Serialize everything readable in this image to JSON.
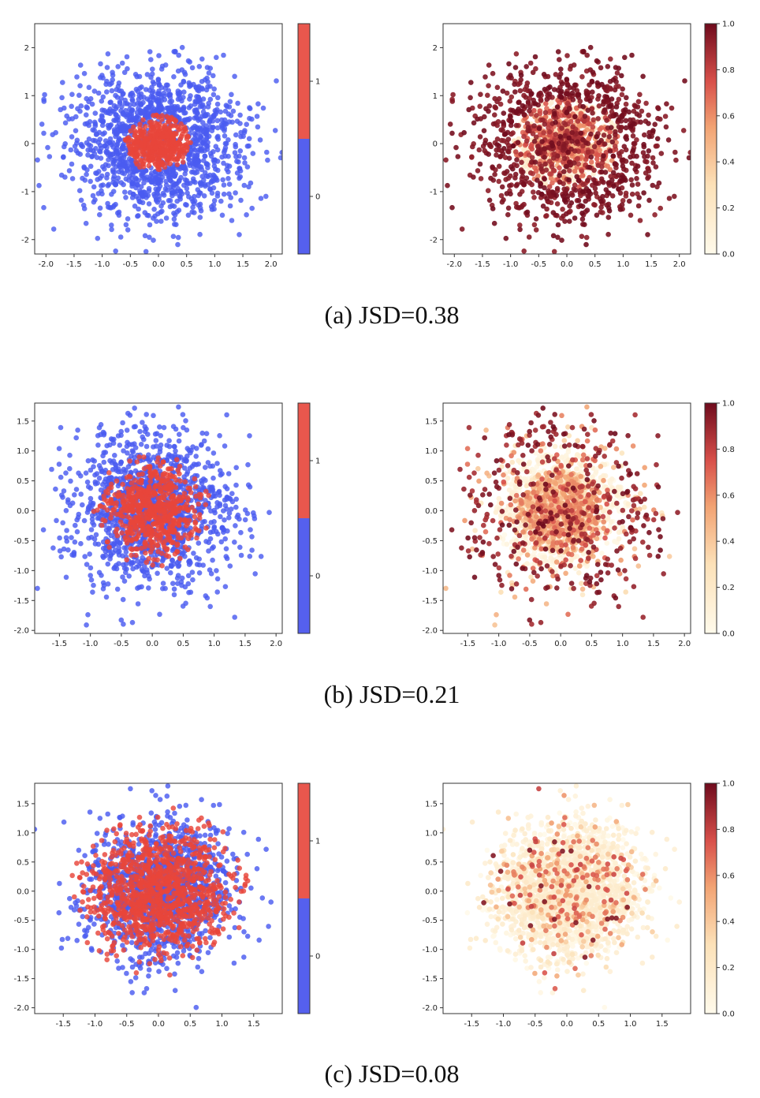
{
  "colors": {
    "blue": "#4a5cf0",
    "red": "#e8453a",
    "cmap_low": "#fffaeb",
    "cmap_mid": "#f2c089",
    "cmap_high": "#6f0b1d"
  },
  "chart_data": [
    {
      "type": "scatter",
      "id": "a",
      "caption": "(a) JSD=0.38",
      "description": "Outer blue ring (class 0, radius ~0.6-2.1) with inner red core (class 1, radius < ~0.6); right panel colored by per-point weight: core ~0.2-0.9 mixed, ring ~1.0",
      "outer_std": 0.75,
      "inner_std": 0.3,
      "inner_clip": 0.6,
      "left": {
        "xlim": [
          -2.2,
          2.2
        ],
        "ylim": [
          -2.3,
          2.5
        ],
        "xticks": [
          "-2.0",
          "-1.5",
          "-1.0",
          "-0.5",
          "0.0",
          "0.5",
          "1.0",
          "1.5",
          "2.0"
        ],
        "xtick_values": [
          -2.0,
          -1.5,
          -1.0,
          -0.5,
          0.0,
          0.5,
          1.0,
          1.5,
          2.0
        ],
        "yticks": [
          "-2",
          "-1",
          "0",
          "1",
          "2"
        ],
        "ytick_values": [
          -2,
          -1,
          0,
          1,
          2
        ],
        "colorbar_ticks": [
          "0",
          "1"
        ]
      },
      "right": {
        "xlim": [
          -2.2,
          2.2
        ],
        "ylim": [
          -2.3,
          2.5
        ],
        "xticks": [
          "-2.0",
          "-1.5",
          "-1.0",
          "-0.5",
          "0.0",
          "0.5",
          "1.0",
          "1.5",
          "2.0"
        ],
        "xtick_values": [
          -2.0,
          -1.5,
          -1.0,
          -0.5,
          0.0,
          0.5,
          1.0,
          1.5,
          2.0
        ],
        "yticks": [
          "-2",
          "-1",
          "0",
          "1",
          "2"
        ],
        "ytick_values": [
          -2,
          -1,
          0,
          1,
          2
        ],
        "colorbar_ticks": [
          "0.0",
          "0.2",
          "0.4",
          "0.6",
          "0.8",
          "1.0"
        ]
      }
    },
    {
      "type": "scatter",
      "id": "b",
      "caption": "(b) JSD=0.21",
      "description": "Blue cloud with larger red core overlapping; weights mostly low in core, high in outer ring",
      "outer_std": 0.65,
      "inner_std": 0.4,
      "inner_clip": 0.95,
      "left": {
        "xlim": [
          -1.9,
          2.1
        ],
        "ylim": [
          -2.05,
          1.8
        ],
        "xticks": [
          "-1.5",
          "-1.0",
          "-0.5",
          "0.0",
          "0.5",
          "1.0",
          "1.5",
          "2.0"
        ],
        "xtick_values": [
          -1.5,
          -1.0,
          -0.5,
          0.0,
          0.5,
          1.0,
          1.5,
          2.0
        ],
        "yticks": [
          "-2.0",
          "-1.5",
          "-1.0",
          "-0.5",
          "0.0",
          "0.5",
          "1.0",
          "1.5"
        ],
        "ytick_values": [
          -2.0,
          -1.5,
          -1.0,
          -0.5,
          0.0,
          0.5,
          1.0,
          1.5
        ],
        "colorbar_ticks": [
          "0",
          "1"
        ]
      },
      "right": {
        "xlim": [
          -1.9,
          2.1
        ],
        "ylim": [
          -2.05,
          1.8
        ],
        "xticks": [
          "-1.5",
          "-1.0",
          "-0.5",
          "0.0",
          "0.5",
          "1.0",
          "1.5",
          "2.0"
        ],
        "xtick_values": [
          -1.5,
          -1.0,
          -0.5,
          0.0,
          0.5,
          1.0,
          1.5,
          2.0
        ],
        "yticks": [
          "-2.0",
          "-1.5",
          "-1.0",
          "-0.5",
          "0.0",
          "0.5",
          "1.0",
          "1.5"
        ],
        "ytick_values": [
          -2.0,
          -1.5,
          -1.0,
          -0.5,
          0.0,
          0.5,
          1.0,
          1.5
        ],
        "colorbar_ticks": [
          "0.0",
          "0.2",
          "0.4",
          "0.6",
          "0.8",
          "1.0"
        ]
      }
    },
    {
      "type": "scatter",
      "id": "c",
      "caption": "(c) JSD=0.08",
      "description": "Blue and red points heavily mixed over the same region; weights mostly near 0.0-0.3",
      "outer_std": 0.6,
      "inner_std": 0.55,
      "inner_clip": 1.45,
      "left": {
        "xlim": [
          -1.95,
          1.95
        ],
        "ylim": [
          -2.1,
          1.85
        ],
        "xticks": [
          "-1.5",
          "-1.0",
          "-0.5",
          "0.0",
          "0.5",
          "1.0",
          "1.5"
        ],
        "xtick_values": [
          -1.5,
          -1.0,
          -0.5,
          0.0,
          0.5,
          1.0,
          1.5
        ],
        "yticks": [
          "-2.0",
          "-1.5",
          "-1.0",
          "-0.5",
          "0.0",
          "0.5",
          "1.0",
          "1.5"
        ],
        "ytick_values": [
          -2.0,
          -1.5,
          -1.0,
          -0.5,
          0.0,
          0.5,
          1.0,
          1.5
        ],
        "colorbar_ticks": [
          "0",
          "1"
        ]
      },
      "right": {
        "xlim": [
          -1.95,
          1.95
        ],
        "ylim": [
          -2.1,
          1.85
        ],
        "xticks": [
          "-1.5",
          "-1.0",
          "-0.5",
          "0.0",
          "0.5",
          "1.0",
          "1.5"
        ],
        "xtick_values": [
          -1.5,
          -1.0,
          -0.5,
          0.0,
          0.5,
          1.0,
          1.5
        ],
        "yticks": [
          "-2.0",
          "-1.5",
          "-1.0",
          "-0.5",
          "0.0",
          "0.5",
          "1.0",
          "1.5"
        ],
        "ytick_values": [
          -2.0,
          -1.5,
          -1.0,
          -0.5,
          0.0,
          0.5,
          1.0,
          1.5
        ],
        "colorbar_ticks": [
          "0.0",
          "0.2",
          "0.4",
          "0.6",
          "0.8",
          "1.0"
        ]
      }
    }
  ]
}
